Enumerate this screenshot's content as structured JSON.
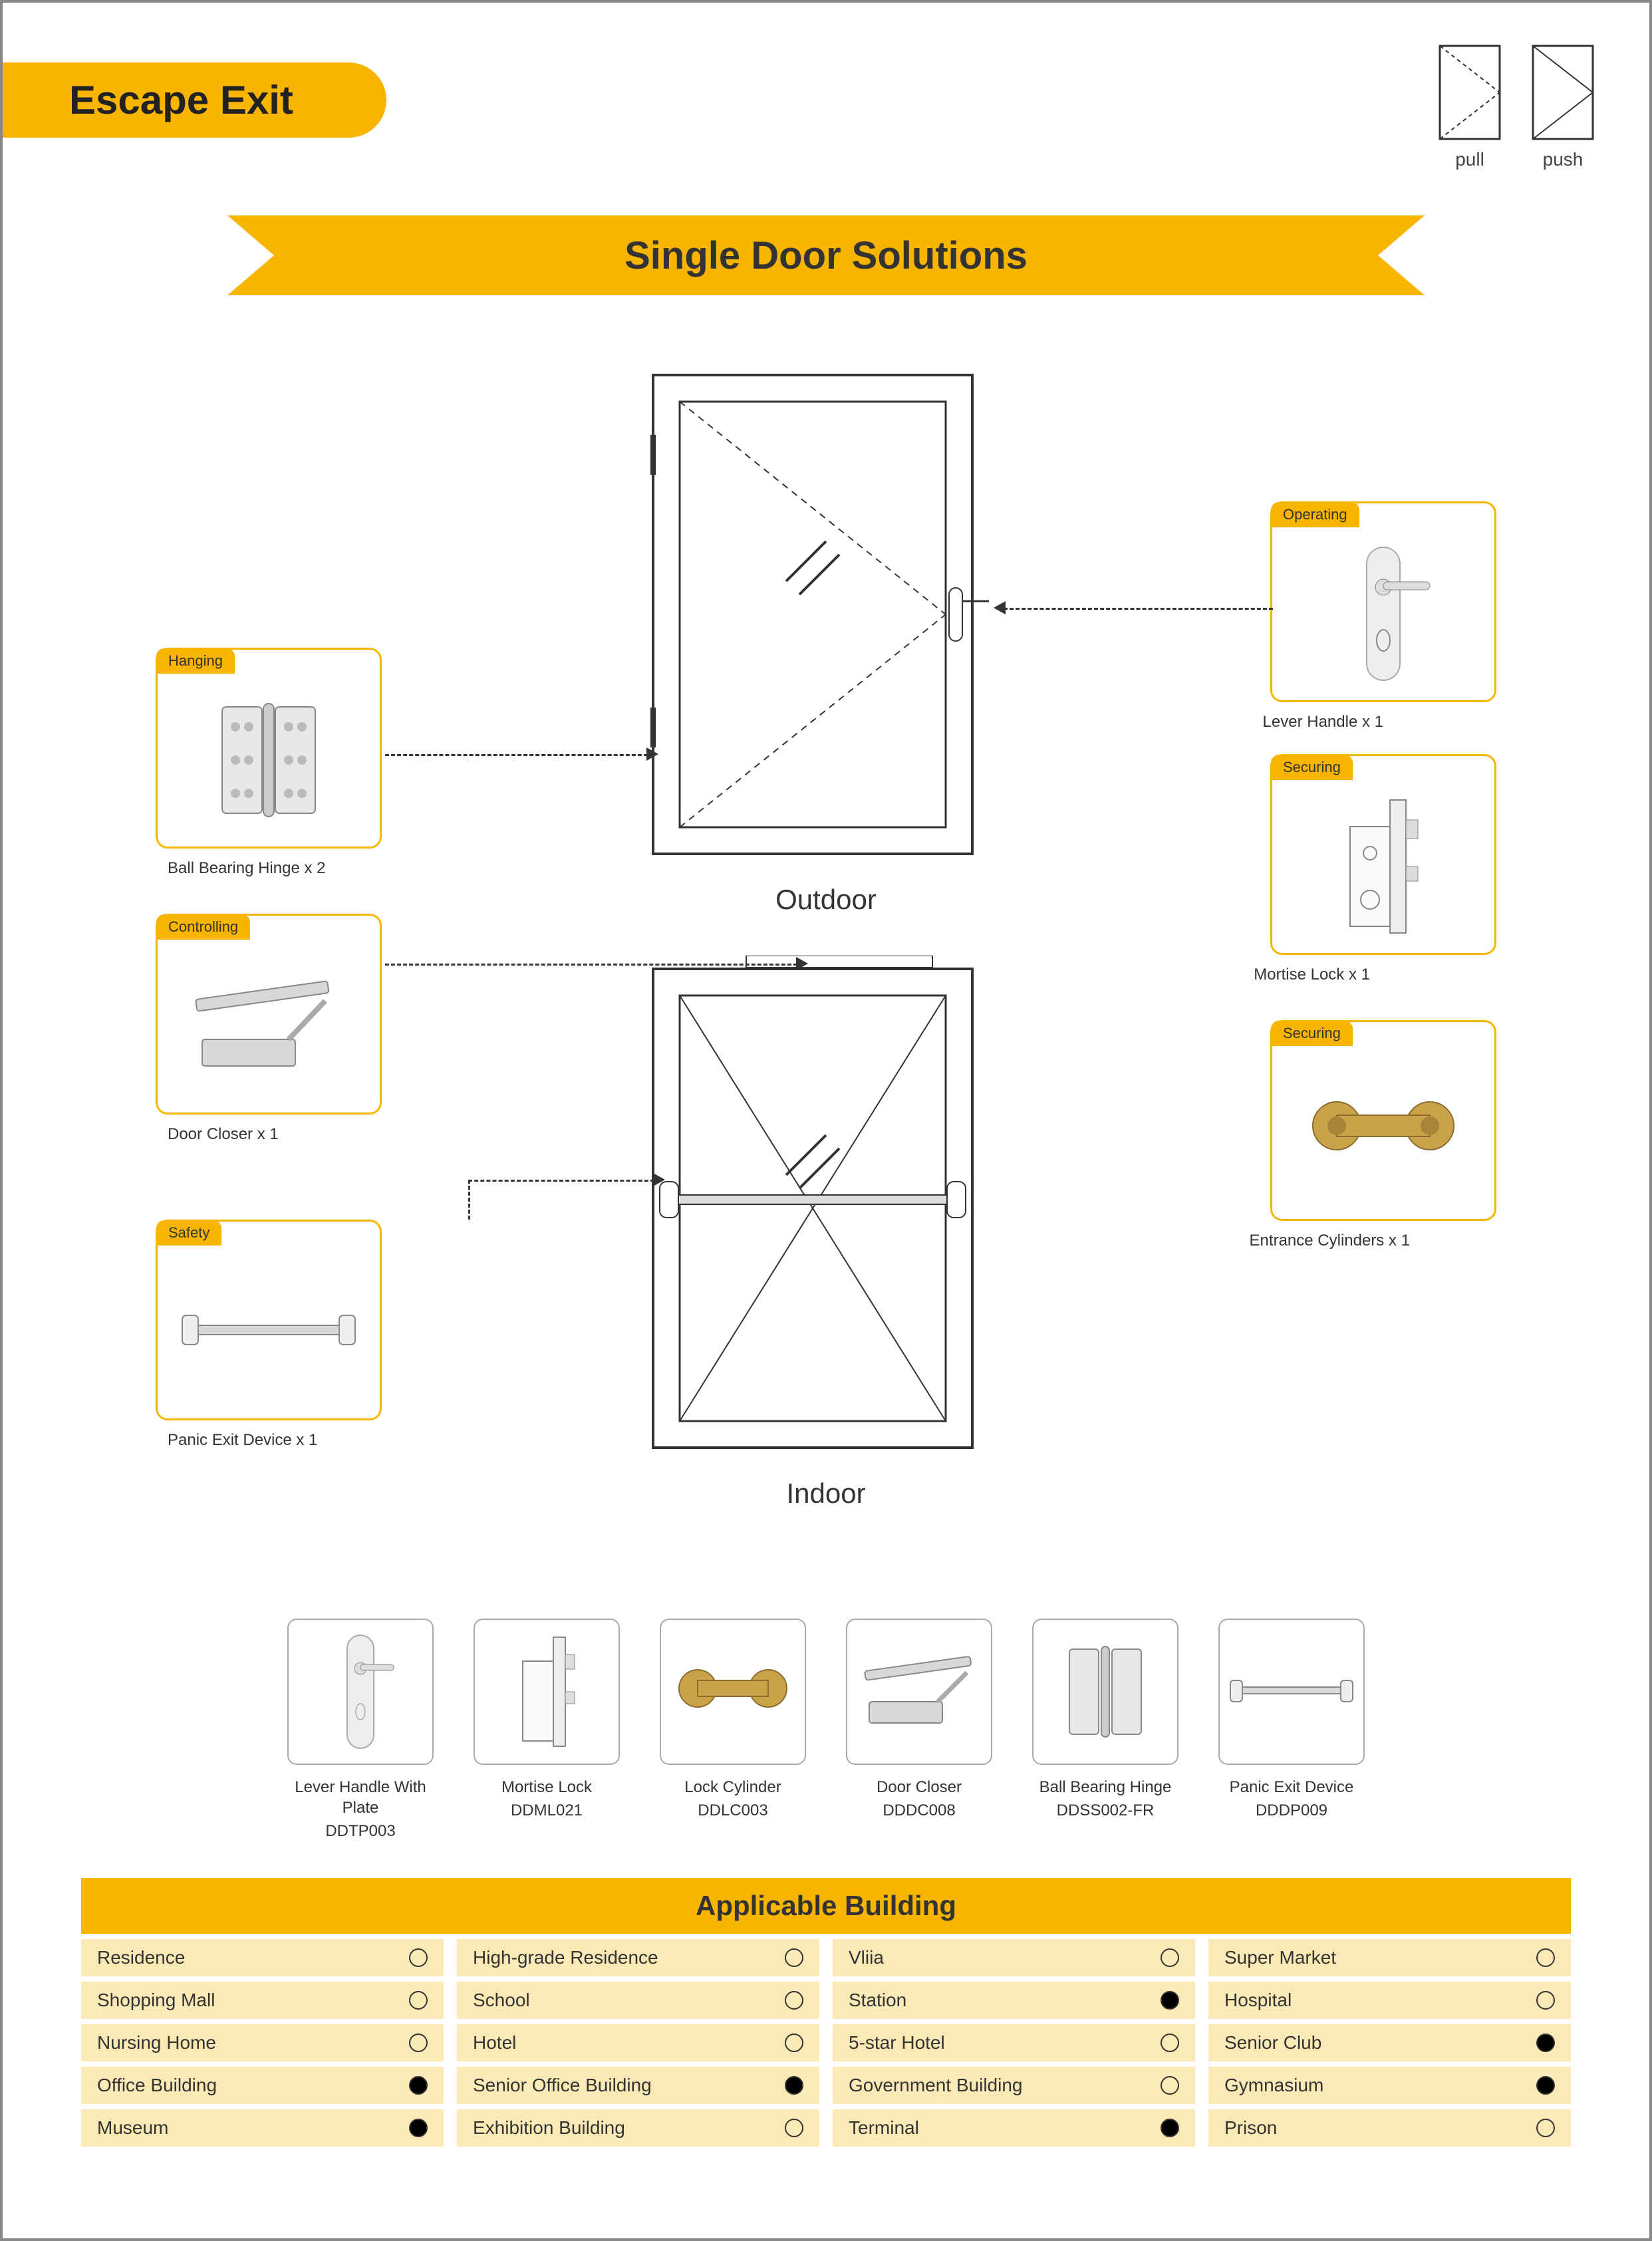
{
  "title": "Escape Exit",
  "banner": "Single Door Solutions",
  "pullpush": {
    "pull": "pull",
    "push": "push"
  },
  "doors": {
    "outdoor": "Outdoor",
    "indoor": "Indoor"
  },
  "colors": {
    "accent": "#f7b500",
    "cell_bg": "#fbe9b6",
    "text": "#333333",
    "border_gray": "#aaaaaa",
    "page_border": "#888888",
    "brass": "#c9a24a",
    "steel": "#d8d8d8"
  },
  "components": {
    "hanging": {
      "tag": "Hanging",
      "caption": "Ball Bearing Hinge x 2"
    },
    "controlling": {
      "tag": "Controlling",
      "caption": "Door Closer x 1"
    },
    "safety": {
      "tag": "Safety",
      "caption": "Panic Exit Device x 1"
    },
    "operating": {
      "tag": "Operating",
      "caption": "Lever Handle x 1"
    },
    "securing1": {
      "tag": "Securing",
      "caption": "Mortise Lock x 1"
    },
    "securing2": {
      "tag": "Securing",
      "caption": "Entrance Cylinders x 1"
    }
  },
  "products": [
    {
      "name": "Lever Handle With Plate",
      "code": "DDTP003"
    },
    {
      "name": "Mortise Lock",
      "code": "DDML021"
    },
    {
      "name": "Lock Cylinder",
      "code": "DDLC003"
    },
    {
      "name": "Door Closer",
      "code": "DDDC008"
    },
    {
      "name": "Ball Bearing Hinge",
      "code": "DDSS002-FR"
    },
    {
      "name": "Panic Exit Device",
      "code": "DDDP009"
    }
  ],
  "applicable": {
    "header": "Applicable Building",
    "items": [
      {
        "label": "Residence",
        "filled": false
      },
      {
        "label": "High-grade Residence",
        "filled": false
      },
      {
        "label": "Vliia",
        "filled": false
      },
      {
        "label": "Super Market",
        "filled": false
      },
      {
        "label": "Shopping Mall",
        "filled": false
      },
      {
        "label": "School",
        "filled": false
      },
      {
        "label": "Station",
        "filled": true
      },
      {
        "label": "Hospital",
        "filled": false
      },
      {
        "label": "Nursing Home",
        "filled": false
      },
      {
        "label": "Hotel",
        "filled": false
      },
      {
        "label": "5-star Hotel",
        "filled": false
      },
      {
        "label": "Senior Club",
        "filled": true
      },
      {
        "label": "Office Building",
        "filled": true
      },
      {
        "label": "Senior Office Building",
        "filled": true
      },
      {
        "label": "Government Building",
        "filled": false
      },
      {
        "label": "Gymnasium",
        "filled": true
      },
      {
        "label": "Museum",
        "filled": true
      },
      {
        "label": "Exhibition Building",
        "filled": false
      },
      {
        "label": "Terminal",
        "filled": true
      },
      {
        "label": "Prison",
        "filled": false
      }
    ]
  }
}
